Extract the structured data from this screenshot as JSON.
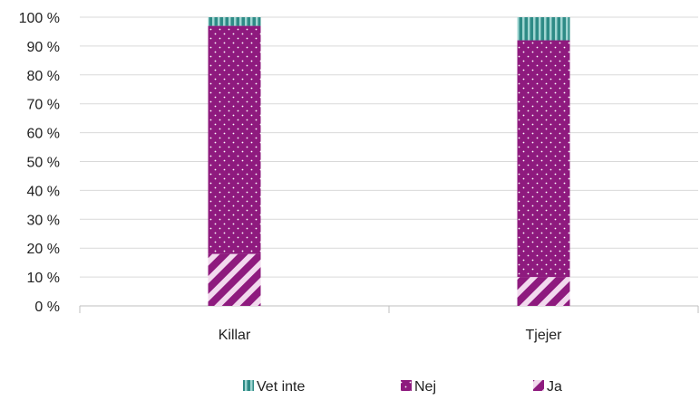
{
  "chart_data": {
    "type": "bar",
    "stacked": true,
    "percent_stacked": true,
    "categories": [
      "Killar",
      "Tjejer"
    ],
    "series": [
      {
        "name": "Ja",
        "values": [
          18,
          10
        ],
        "color": "#8E1A7E",
        "pattern": "diagonal-stripes"
      },
      {
        "name": "Nej",
        "values": [
          79,
          82
        ],
        "color": "#8E1A7E",
        "pattern": "dots"
      },
      {
        "name": "Vet inte",
        "values": [
          3,
          8
        ],
        "color": "#2E8B86",
        "pattern": "vertical-stripes"
      }
    ],
    "y_ticks": [
      "0 %",
      "10 %",
      "20 %",
      "30 %",
      "40 %",
      "50 %",
      "60 %",
      "70 %",
      "80 %",
      "90 %",
      "100 %"
    ],
    "ylim": [
      0,
      100
    ],
    "grid": true,
    "legend_position": "bottom",
    "legend_order": [
      "Vet inte",
      "Nej",
      "Ja"
    ]
  }
}
